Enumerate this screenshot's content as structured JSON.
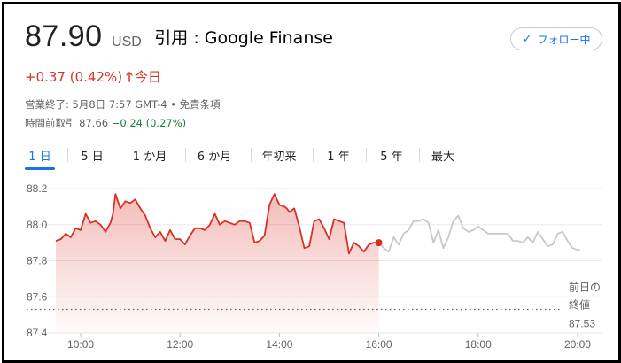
{
  "quote": {
    "price": "87.90",
    "currency": "USD",
    "source_note": "引用 : Google Finanse",
    "change_text": "+0.37 (0.42%)",
    "change_arrow": "🡑",
    "change_period": "今日",
    "status_line": "営業終了: 5月8日 7:57 GMT-4 • 免責条項",
    "premarket_label": "時間前取引 87.66",
    "premarket_change": "−0.24 (0.27%)"
  },
  "follow_button": {
    "label": "フォロー中",
    "icon": "check-icon"
  },
  "tabs": [
    {
      "label": "1 日",
      "active": true
    },
    {
      "label": "5 日",
      "active": false
    },
    {
      "label": "1 か月",
      "active": false
    },
    {
      "label": "6 か月",
      "active": false
    },
    {
      "label": "年初来",
      "active": false
    },
    {
      "label": "1 年",
      "active": false
    },
    {
      "label": "5 年",
      "active": false
    },
    {
      "label": "最大",
      "active": false
    }
  ],
  "colors": {
    "up": "#d93025",
    "down": "#188038",
    "accent": "#1a73e8",
    "projection_line": "#c8c8c8",
    "grid": "#e8eaed"
  },
  "chart_data": {
    "type": "area",
    "x_unit": "hour",
    "xlim": [
      9.5,
      20.5
    ],
    "ylim": [
      87.4,
      88.2
    ],
    "y_ticks": [
      "88.2",
      "88.0",
      "87.8",
      "87.6",
      "87.4"
    ],
    "y_tick_values": [
      88.2,
      88.0,
      87.8,
      87.6,
      87.4
    ],
    "x_ticks": [
      "10:00",
      "12:00",
      "14:00",
      "16:00",
      "18:00",
      "20:00"
    ],
    "x_tick_values": [
      10,
      12,
      14,
      16,
      18,
      20
    ],
    "grid": true,
    "previous_close": {
      "label": [
        "前日の",
        "終値"
      ],
      "value": 87.53,
      "value_label": "87.53"
    },
    "series": [
      {
        "x": [
          9.5,
          9.6,
          9.7,
          9.8,
          9.9,
          10.0,
          10.1,
          10.2,
          10.3,
          10.4,
          10.5,
          10.6,
          10.65,
          10.7,
          10.8,
          10.9,
          11.0,
          11.1,
          11.2,
          11.3,
          11.4,
          11.5,
          11.6,
          11.7,
          11.8,
          11.9,
          12.0,
          12.1,
          12.2,
          12.3,
          12.4,
          12.5,
          12.6,
          12.7,
          12.8,
          12.9,
          13.0,
          13.1,
          13.2,
          13.3,
          13.4,
          13.5,
          13.6,
          13.7,
          13.8,
          13.9,
          14.0,
          14.1,
          14.15,
          14.2,
          14.3,
          14.4,
          14.5,
          14.6,
          14.7,
          14.8,
          14.9,
          15.0,
          15.1,
          15.2,
          15.3,
          15.4,
          15.5,
          15.6,
          15.7,
          15.8,
          15.9,
          16.0
        ],
        "values": [
          87.91,
          87.92,
          87.95,
          87.93,
          87.98,
          87.97,
          88.06,
          88.01,
          88.02,
          88.0,
          87.96,
          88.01,
          88.06,
          88.17,
          88.09,
          88.13,
          88.12,
          88.14,
          88.09,
          88.05,
          87.98,
          87.93,
          87.96,
          87.91,
          87.97,
          87.92,
          87.92,
          87.89,
          87.94,
          87.98,
          87.98,
          87.97,
          88.0,
          88.06,
          88.0,
          88.02,
          88.01,
          88.0,
          88.02,
          88.02,
          88.01,
          87.9,
          87.91,
          87.94,
          88.11,
          88.17,
          88.11,
          88.1,
          88.09,
          88.07,
          88.09,
          87.99,
          87.87,
          87.88,
          88.02,
          88.03,
          87.98,
          87.92,
          88.03,
          88.02,
          88.01,
          87.84,
          87.9,
          87.88,
          87.85,
          87.89,
          87.9,
          87.9
        ]
      },
      {
        "x": [
          16.0,
          16.1,
          16.2,
          16.3,
          16.4,
          16.5,
          16.6,
          16.7,
          16.8,
          16.9,
          17.0,
          17.1,
          17.2,
          17.3,
          17.4,
          17.5,
          17.6,
          17.7,
          17.8,
          17.9,
          18.0,
          18.1,
          18.2,
          18.3,
          18.4,
          18.5,
          18.6,
          18.7,
          18.8,
          18.9,
          19.0,
          19.1,
          19.2,
          19.3,
          19.4,
          19.5,
          19.6,
          19.7,
          19.8,
          19.9,
          20.0,
          20.05
        ],
        "values": [
          87.9,
          87.87,
          87.85,
          87.93,
          87.89,
          87.95,
          87.97,
          88.02,
          88.02,
          88.03,
          88.01,
          87.9,
          87.97,
          87.87,
          87.93,
          88.02,
          88.05,
          87.98,
          87.96,
          87.97,
          87.99,
          87.97,
          87.95,
          87.95,
          87.95,
          87.95,
          87.95,
          87.91,
          87.91,
          87.9,
          87.93,
          87.9,
          87.96,
          87.92,
          87.88,
          87.89,
          87.95,
          87.96,
          87.91,
          87.87,
          87.86,
          87.86
        ]
      }
    ]
  }
}
